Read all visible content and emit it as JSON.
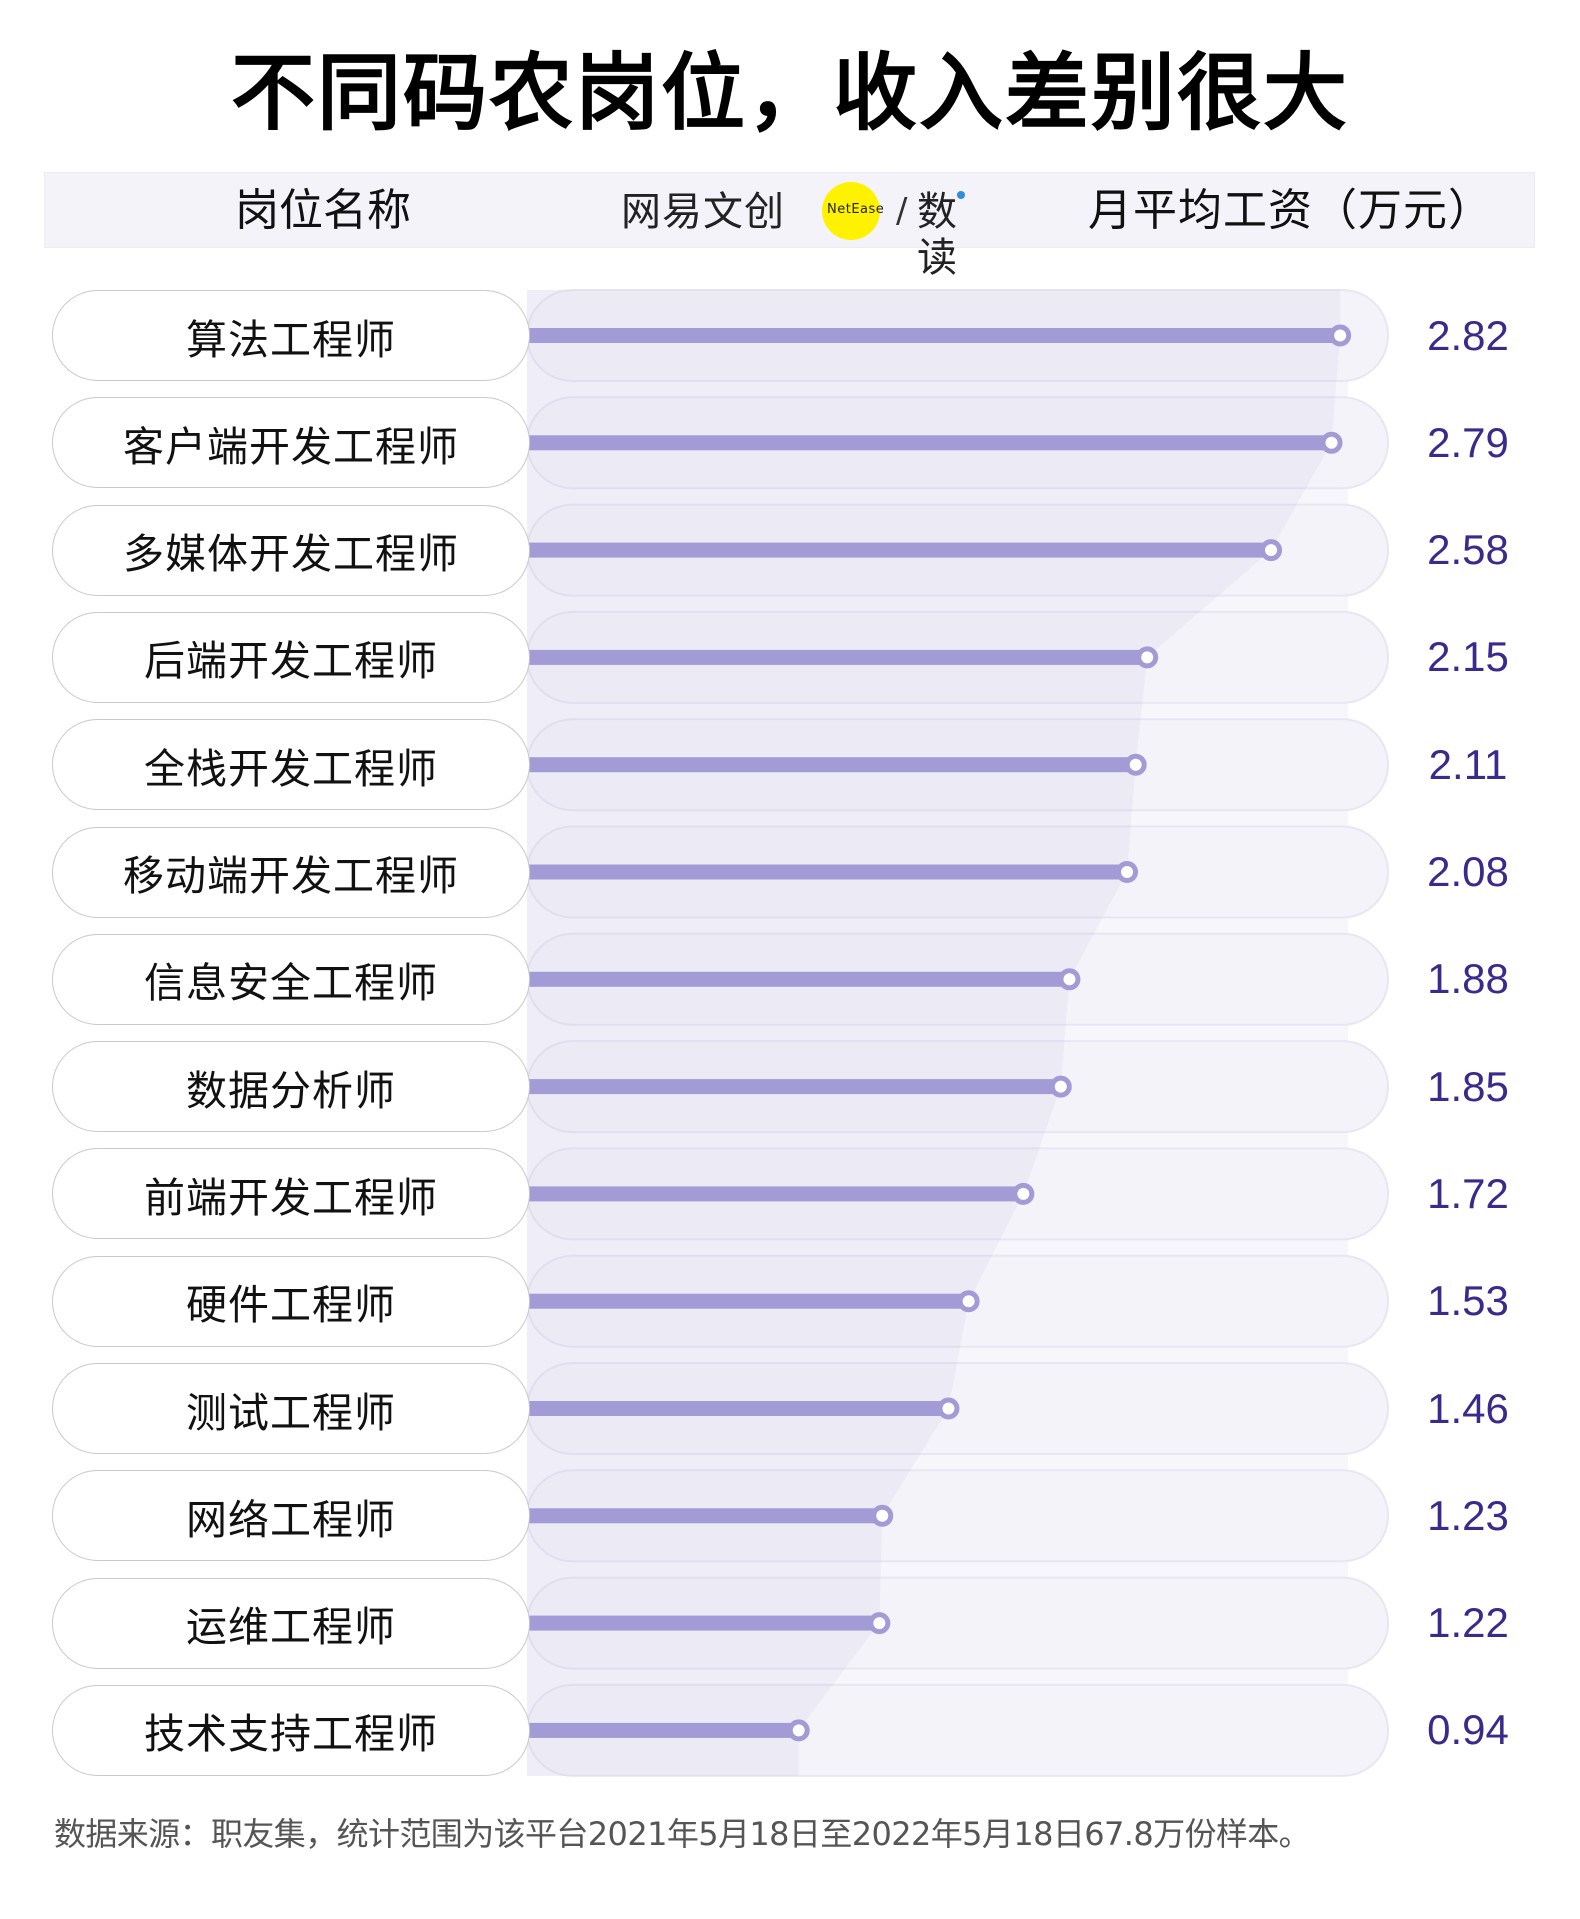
{
  "title": "不同码农岗位，收入差别很大",
  "header": {
    "left_label": "岗位名称",
    "right_label": "月平均工资（万元）",
    "logo": {
      "brand_cn": "网易文创",
      "brand_en": "NetEase",
      "separator": "/",
      "column": "数读"
    }
  },
  "footer": {
    "source": "数据来源：职友集，统计范围为该平台2021年5月18日至2022年5月18日67.8万份样本。"
  },
  "colors": {
    "bar": "#a29bd6",
    "value_text": "#3b2a8c",
    "track": "#f4f3f9",
    "area": "#e9e7f4",
    "header_bg": "#f3f3f9",
    "logo_yellow": "#fff200"
  },
  "chart_data": {
    "type": "bar",
    "orientation": "horizontal",
    "title": "不同码农岗位，收入差别很大",
    "xlabel": "月平均工资（万元）",
    "ylabel": "岗位名称",
    "categories": [
      "算法工程师",
      "客户端开发工程师",
      "多媒体开发工程师",
      "后端开发工程师",
      "全栈开发工程师",
      "移动端开发工程师",
      "信息安全工程师",
      "数据分析师",
      "前端开发工程师",
      "硬件工程师",
      "测试工程师",
      "网络工程师",
      "运维工程师",
      "技术支持工程师"
    ],
    "values": [
      2.82,
      2.79,
      2.58,
      2.15,
      2.11,
      2.08,
      1.88,
      1.85,
      1.72,
      1.53,
      1.46,
      1.23,
      1.22,
      0.94
    ],
    "value_labels": [
      "2.82",
      "2.79",
      "2.58",
      "2.15",
      "2.11",
      "2.08",
      "1.88",
      "1.85",
      "1.72",
      "1.53",
      "1.46",
      "1.23",
      "1.22",
      "0.94"
    ],
    "unit": "万元",
    "grid": false,
    "legend": null,
    "source": "职友集"
  }
}
